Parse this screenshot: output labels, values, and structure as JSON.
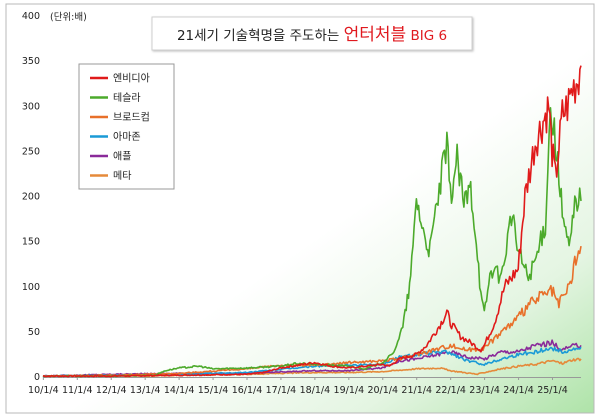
{
  "chart_data": {
    "type": "line",
    "title_prefix": "21세기 기술혁명을 주도하는 ",
    "title_emphasis": "언터처블",
    "title_suffix": " BIG 6",
    "unit_label": "(단위:배)",
    "xlabel": "",
    "ylabel": "",
    "ylim": [
      0,
      400
    ],
    "y_ticks": [
      0,
      50,
      100,
      150,
      200,
      250,
      300,
      350,
      400
    ],
    "x_ticks": [
      "10/1/4",
      "11/1/4",
      "12/1/4",
      "13/1/4",
      "14/1/4",
      "15/1/4",
      "16/1/4",
      "17/1/4",
      "18/1/4",
      "19/1/4",
      "20/1/4",
      "21/1/4",
      "22/1/4",
      "23/1/4",
      "24/1/4",
      "25/1/4"
    ],
    "xlim": [
      2010.0,
      2025.85
    ],
    "legend_position": "top-left",
    "grid": false,
    "series": [
      {
        "name": "엔비디아",
        "color": "#e01a1a",
        "x": [
          2010,
          2012,
          2014,
          2016,
          2016.5,
          2017,
          2017.5,
          2018,
          2018.5,
          2019,
          2019.5,
          2020,
          2020.2,
          2020.5,
          2021,
          2021.3,
          2021.7,
          2021.9,
          2022,
          2022.3,
          2022.6,
          2022.9,
          2023,
          2023.3,
          2023.6,
          2024,
          2024.2,
          2024.5,
          2024.7,
          2024.9,
          2025,
          2025.1,
          2025.3,
          2025.45,
          2025.6,
          2025.75,
          2025.85
        ],
        "y": [
          1,
          1,
          2,
          3,
          5,
          10,
          13,
          16,
          12,
          10,
          12,
          14,
          12,
          20,
          25,
          35,
          58,
          72,
          60,
          45,
          38,
          30,
          35,
          60,
          100,
          120,
          200,
          260,
          280,
          300,
          250,
          220,
          290,
          300,
          320,
          330,
          345
        ]
      },
      {
        "name": "테슬라",
        "color": "#4caa2b",
        "x": [
          2010,
          2012,
          2013.3,
          2013.6,
          2014,
          2014.6,
          2015,
          2016,
          2017,
          2017.5,
          2018,
          2019,
          2019.5,
          2020,
          2020.3,
          2020.6,
          2020.8,
          2020.9,
          2021,
          2021.2,
          2021.4,
          2021.6,
          2021.9,
          2022,
          2022.2,
          2022.4,
          2022.6,
          2022.8,
          2022.9,
          2023,
          2023.2,
          2023.5,
          2023.8,
          2024,
          2024.3,
          2024.6,
          2024.8,
          2024.95,
          2025.1,
          2025.3,
          2025.5,
          2025.7,
          2025.85
        ],
        "y": [
          1,
          1,
          2,
          7,
          10,
          12,
          9,
          10,
          12,
          15,
          14,
          12,
          9,
          16,
          25,
          55,
          100,
          140,
          200,
          160,
          140,
          190,
          255,
          200,
          240,
          190,
          210,
          140,
          90,
          70,
          120,
          110,
          180,
          140,
          110,
          140,
          170,
          300,
          260,
          180,
          140,
          200,
          195
        ]
      },
      {
        "name": "브로드컴",
        "color": "#e8702a",
        "x": [
          2010,
          2012,
          2014,
          2016,
          2017,
          2018,
          2019,
          2020,
          2020.5,
          2021,
          2021.5,
          2022,
          2022.5,
          2023,
          2023.5,
          2024,
          2024.3,
          2024.7,
          2025,
          2025.2,
          2025.5,
          2025.7,
          2025.85
        ],
        "y": [
          1,
          2,
          4,
          9,
          13,
          13,
          16,
          18,
          20,
          25,
          30,
          35,
          30,
          32,
          50,
          65,
          80,
          90,
          95,
          80,
          100,
          130,
          145
        ]
      },
      {
        "name": "아마존",
        "color": "#1a9ad6",
        "x": [
          2010,
          2012,
          2014,
          2016,
          2018,
          2019,
          2020,
          2020.5,
          2021,
          2021.9,
          2022.5,
          2023,
          2023.5,
          2024,
          2024.5,
          2025,
          2025.3,
          2025.6,
          2025.85
        ],
        "y": [
          1,
          2,
          3,
          5,
          12,
          13,
          14,
          22,
          25,
          28,
          18,
          14,
          20,
          25,
          28,
          32,
          28,
          30,
          33
        ]
      },
      {
        "name": "애플",
        "color": "#8a2a9a",
        "x": [
          2010,
          2012,
          2014,
          2016,
          2018,
          2019,
          2020,
          2020.5,
          2021,
          2022,
          2022.5,
          2023,
          2023.5,
          2024,
          2024.5,
          2025,
          2025.3,
          2025.6,
          2025.85
        ],
        "y": [
          1,
          3,
          4,
          4,
          7,
          7,
          10,
          18,
          20,
          28,
          22,
          20,
          28,
          28,
          35,
          38,
          30,
          34,
          35
        ]
      },
      {
        "name": "메타",
        "color": "#e58a3a",
        "x": [
          2012.4,
          2013,
          2014,
          2016,
          2018,
          2019,
          2020,
          2021,
          2021.7,
          2022,
          2022.8,
          2023,
          2023.5,
          2024,
          2024.5,
          2025,
          2025.3,
          2025.6,
          2025.85
        ],
        "y": [
          1,
          1,
          2,
          3,
          5,
          5,
          6,
          9,
          10,
          7,
          3,
          5,
          9,
          12,
          14,
          18,
          15,
          19,
          20
        ]
      }
    ]
  }
}
